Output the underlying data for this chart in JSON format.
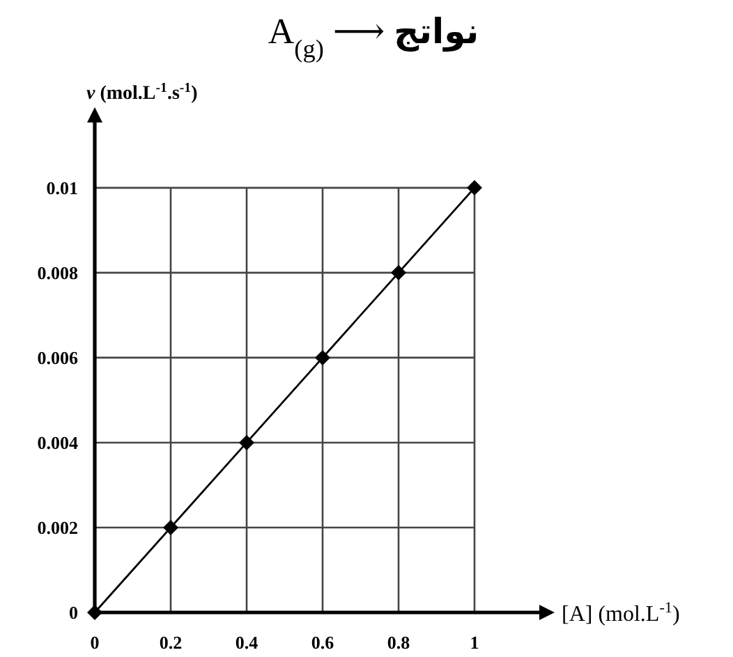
{
  "chart_data": {
    "type": "line",
    "title": "A$_{(g)}$ ⟶ نواتج",
    "xlabel": "[A] (mol.L$^{-1}$)",
    "ylabel": "*v* (mol.L$^{-1}$.s$^{-1}$)",
    "x": [
      0,
      0.2,
      0.4,
      0.6,
      0.8,
      1
    ],
    "values": [
      0,
      0.002,
      0.004,
      0.006,
      0.008,
      0.01
    ],
    "color": "#000000",
    "xlim": [
      0,
      1.2
    ],
    "ylim": [
      0,
      0.0118
    ],
    "xticks": [
      0,
      0.2,
      0.4,
      0.6,
      0.8,
      1
    ],
    "yticks": [
      0,
      0.002,
      0.004,
      0.006,
      0.008,
      0.01
    ],
    "grid": true,
    "marker": "diamond",
    "line_style": "solid"
  }
}
